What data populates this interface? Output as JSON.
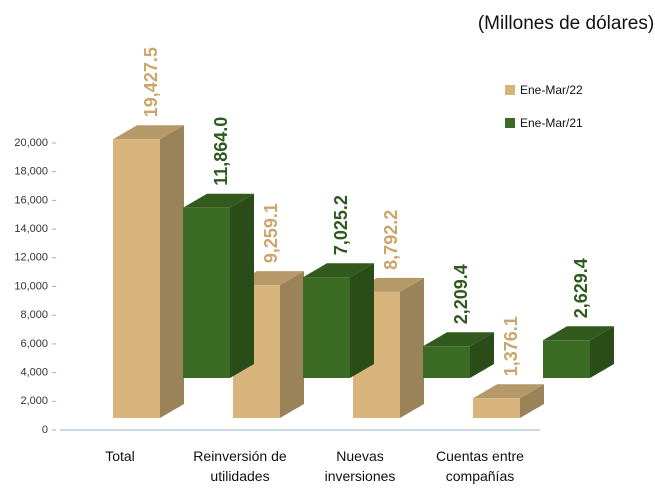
{
  "chart_data": {
    "type": "bar3d",
    "title": "(Millones de dólares)",
    "categories": [
      "Total",
      "Reinversión de utilidades",
      "Nuevas inversiones",
      "Cuentas entre compañías"
    ],
    "series": [
      {
        "name": "Ene-Mar/22",
        "color": "#d6b47c",
        "values": [
          19427.5,
          9259.1,
          8792.2,
          1376.1
        ],
        "value_labels": [
          "19,427.5",
          "9,259.1",
          "8,792.2",
          "1,376.1"
        ]
      },
      {
        "name": "Ene-Mar/21",
        "color": "#3b6a22",
        "values": [
          11864.0,
          7025.2,
          2209.4,
          2629.4
        ],
        "value_labels": [
          "11,864.0",
          "7,025.2",
          "2,209.4",
          "2,629.4"
        ]
      }
    ],
    "ylim": [
      0,
      20000
    ],
    "yticks": [
      0,
      {
        "value": 2000,
        "label": "2,000"
      },
      {
        "value": 4000,
        "label": "4,000"
      },
      {
        "value": 6000,
        "label": "6,000"
      },
      {
        "value": 8000,
        "label": "8,000"
      },
      {
        "value": 10000,
        "label": "10,000"
      },
      {
        "value": 12000,
        "label": "12,000"
      },
      {
        "value": 14000,
        "label": "14,000"
      },
      {
        "value": 16000,
        "label": "16,000"
      },
      {
        "value": 18000,
        "label": "18,000"
      },
      {
        "value": 20000,
        "label": "20,000"
      }
    ],
    "legend": "top-right"
  }
}
